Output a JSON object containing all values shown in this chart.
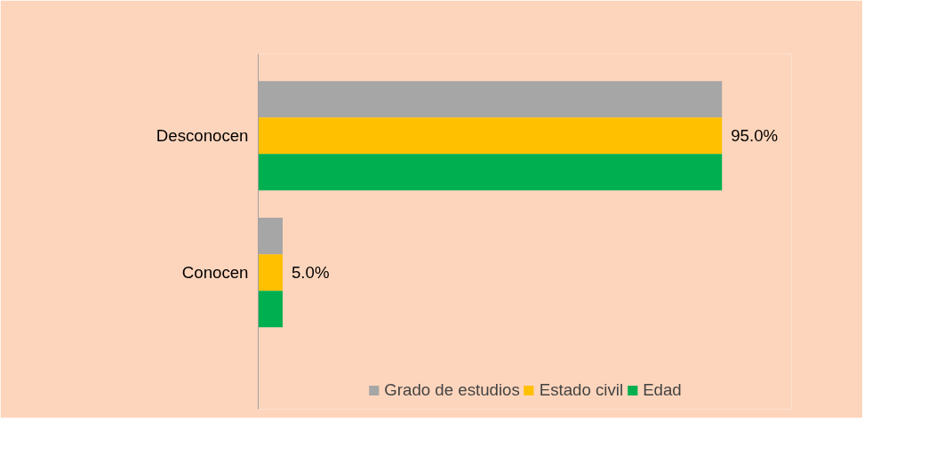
{
  "chart_data": {
    "type": "bar",
    "orientation": "horizontal",
    "categories": [
      "Desconocen",
      "Conocen"
    ],
    "series": [
      {
        "name": "Grado de estudios",
        "color": "#a6a6a6",
        "values": [
          95,
          5
        ]
      },
      {
        "name": "Estado civil",
        "color": "#ffc000",
        "values": [
          95,
          5
        ],
        "value_labels": [
          "95.0%",
          "5.0%"
        ]
      },
      {
        "name": "Edad",
        "color": "#00b050",
        "values": [
          95,
          5
        ]
      }
    ],
    "legend": "bottom"
  }
}
